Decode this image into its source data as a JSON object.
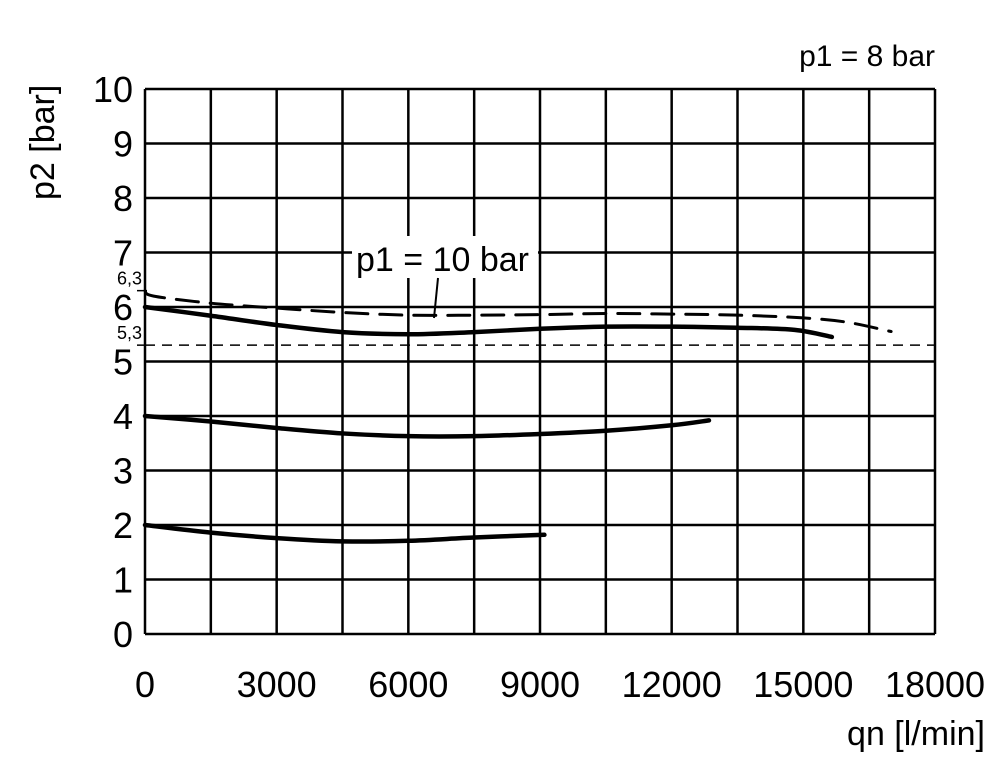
{
  "chart_data": {
    "type": "line",
    "title": "p1 = 8 bar",
    "xlabel": "qn [l/min]",
    "ylabel": "p2 [bar]",
    "xlim": [
      0,
      18000
    ],
    "ylim": [
      0,
      10
    ],
    "grid": true,
    "x_ticks": [
      0,
      3000,
      6000,
      9000,
      12000,
      15000,
      18000
    ],
    "y_ticks": [
      0,
      1,
      2,
      3,
      4,
      5,
      6,
      7,
      8,
      9,
      10
    ],
    "reference_lines": [
      {
        "label": "6,3",
        "y": 6.3
      },
      {
        "label": "5,3",
        "y": 5.3,
        "style": "dashed"
      }
    ],
    "annotation": "p1 = 10 bar",
    "series": [
      {
        "name": "p1 = 10 bar",
        "style": "dashed",
        "points": [
          [
            0,
            6.3
          ],
          [
            200,
            6.2
          ],
          [
            1500,
            6.07
          ],
          [
            3000,
            5.98
          ],
          [
            4500,
            5.9
          ],
          [
            6000,
            5.85
          ],
          [
            7500,
            5.85
          ],
          [
            9000,
            5.86
          ],
          [
            10500,
            5.88
          ],
          [
            12000,
            5.87
          ],
          [
            13500,
            5.85
          ],
          [
            15000,
            5.8
          ],
          [
            16000,
            5.72
          ],
          [
            17000,
            5.55
          ]
        ]
      },
      {
        "style": "solid",
        "points": [
          [
            0,
            6.0
          ],
          [
            1500,
            5.84
          ],
          [
            3000,
            5.67
          ],
          [
            4500,
            5.54
          ],
          [
            6000,
            5.5
          ],
          [
            7500,
            5.54
          ],
          [
            9000,
            5.6
          ],
          [
            10500,
            5.64
          ],
          [
            12000,
            5.64
          ],
          [
            13500,
            5.62
          ],
          [
            14800,
            5.58
          ],
          [
            15650,
            5.45
          ]
        ]
      },
      {
        "style": "solid",
        "points": [
          [
            0,
            4.0
          ],
          [
            1500,
            3.9
          ],
          [
            3000,
            3.78
          ],
          [
            4500,
            3.68
          ],
          [
            6000,
            3.63
          ],
          [
            7500,
            3.63
          ],
          [
            9000,
            3.67
          ],
          [
            10500,
            3.73
          ],
          [
            12000,
            3.83
          ],
          [
            12850,
            3.92
          ]
        ]
      },
      {
        "style": "solid",
        "points": [
          [
            0,
            2.0
          ],
          [
            1500,
            1.86
          ],
          [
            3000,
            1.76
          ],
          [
            4500,
            1.7
          ],
          [
            6000,
            1.71
          ],
          [
            7500,
            1.77
          ],
          [
            9100,
            1.82
          ]
        ]
      }
    ]
  }
}
